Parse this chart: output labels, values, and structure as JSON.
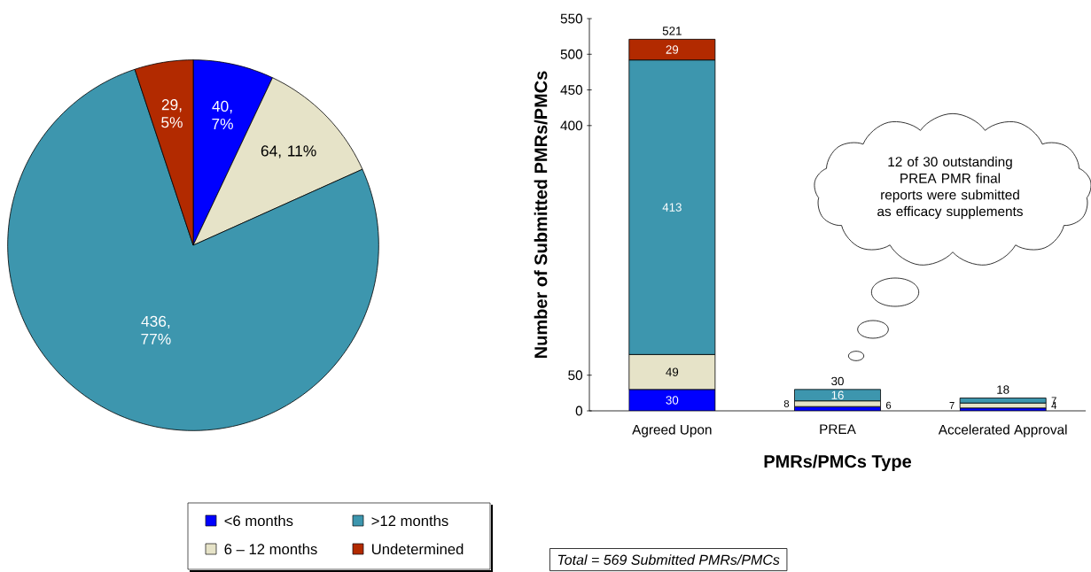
{
  "chart_data": [
    {
      "type": "pie",
      "categories": [
        "<6 months",
        "6 – 12 months",
        ">12 months",
        "Undetermined"
      ],
      "values": [
        40,
        64,
        436,
        29
      ],
      "colors": [
        "#0000ff",
        "#e6e3c8",
        "#3d96ae",
        "#b22a00"
      ],
      "value_labels": [
        "40, 7%",
        "64, 11%",
        "436, 77%",
        "29, 5%"
      ],
      "legend": "bottom"
    },
    {
      "type": "bar",
      "categories": [
        "Agreed Upon",
        "PREA",
        "Accelerated Approval"
      ],
      "stacked": true,
      "series": [
        {
          "color": "#0000ff",
          "values": [
            30,
            6,
            4
          ]
        },
        {
          "color": "#e6e3c8",
          "values": [
            49,
            8,
            7
          ]
        },
        {
          "color": "#3d96ae",
          "values": [
            413,
            16,
            7
          ]
        },
        {
          "color": "#b22a00",
          "values": [
            29,
            null,
            null
          ]
        }
      ],
      "ylim": [
        0,
        550
      ],
      "yticks": [
        0,
        50,
        400,
        450,
        500,
        550
      ],
      "data_labels": true,
      "totals": [
        "521",
        "30",
        "18"
      ],
      "xlabel": "PMRs/PMCs Type",
      "ylabel": "Number of Submitted PMRs/PMCs",
      "annotations": [
        "12 of 30 outstanding PREA PMR final reports were submitted as efficacy supplements",
        "*Total = 569 Submitted PMRs/PMCs*"
      ]
    }
  ]
}
